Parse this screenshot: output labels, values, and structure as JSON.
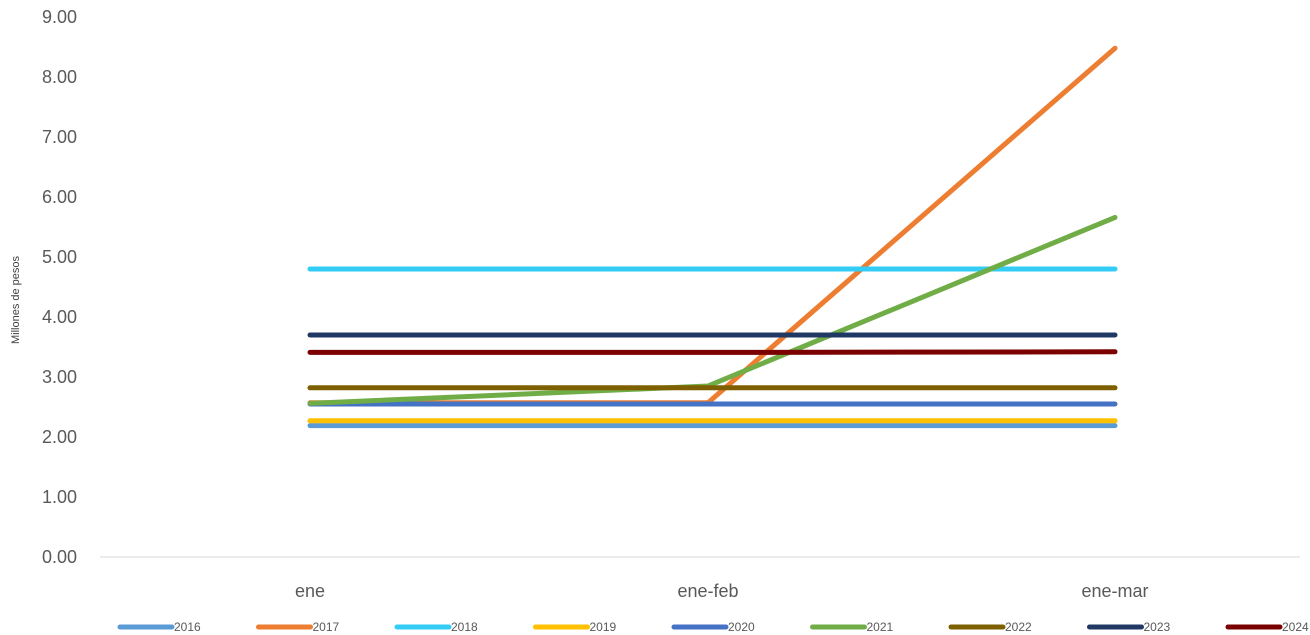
{
  "chart_data": {
    "type": "line",
    "title": "",
    "xlabel": "",
    "ylabel": "Millones de pesos",
    "categories": [
      "ene",
      "ene-feb",
      "ene-mar"
    ],
    "ylim": [
      0,
      9
    ],
    "yticks": [
      "0.00",
      "1.00",
      "2.00",
      "3.00",
      "4.00",
      "5.00",
      "6.00",
      "7.00",
      "8.00",
      "9.00"
    ],
    "grid": false,
    "legend": "bottom",
    "series": [
      {
        "name": "2016",
        "color": "#5B9BD5",
        "values": [
          2.19,
          2.19,
          2.19
        ]
      },
      {
        "name": "2017",
        "color": "#ED7D31",
        "values": [
          2.57,
          2.57,
          8.48
        ]
      },
      {
        "name": "2018",
        "color": "#33CCF5",
        "values": [
          4.8,
          4.8,
          4.8
        ]
      },
      {
        "name": "2019",
        "color": "#FFC000",
        "values": [
          2.27,
          2.27,
          2.27
        ]
      },
      {
        "name": "2020",
        "color": "#4472C4",
        "values": [
          2.55,
          2.55,
          2.55
        ]
      },
      {
        "name": "2021",
        "color": "#70AD47",
        "values": [
          2.56,
          2.85,
          5.66
        ]
      },
      {
        "name": "2022",
        "color": "#7F6000",
        "values": [
          2.82,
          2.82,
          2.82
        ]
      },
      {
        "name": "2023",
        "color": "#203864",
        "values": [
          3.7,
          3.7,
          3.7
        ]
      },
      {
        "name": "2024",
        "color": "#7B0000",
        "values": [
          3.41,
          3.41,
          3.42
        ]
      }
    ]
  }
}
